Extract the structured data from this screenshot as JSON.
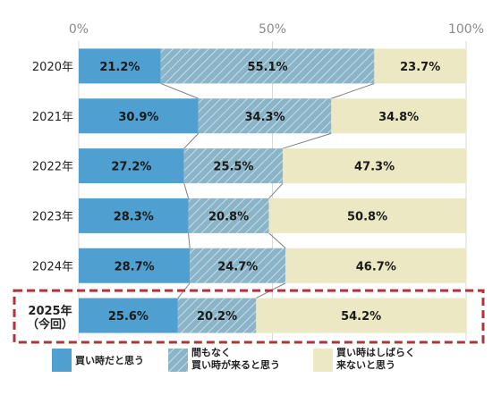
{
  "chart_data": {
    "type": "bar",
    "orientation": "horizontal",
    "stacked": true,
    "percent": true,
    "xlim": [
      0,
      100
    ],
    "x_ticks": [
      "0%",
      "50%",
      "100%"
    ],
    "categories": [
      "2020年",
      "2021年",
      "2022年",
      "2023年",
      "2024年",
      "2025年\n（今回）"
    ],
    "highlight_category": "2025年\n（今回）",
    "series": [
      {
        "name": "買い時だと思う",
        "color": "#4f9fd1",
        "pattern": "solid",
        "values": [
          21.2,
          30.9,
          27.2,
          28.3,
          28.7,
          25.6
        ]
      },
      {
        "name": "間もなく\n買い時が来ると思う",
        "color": "#8ab4c8",
        "pattern": "hatched",
        "values": [
          55.1,
          34.3,
          25.5,
          20.8,
          24.7,
          20.2
        ]
      },
      {
        "name": "買い時はしばらく\n来ないと思う",
        "color": "#ede8c4",
        "pattern": "solid",
        "values": [
          23.7,
          34.8,
          47.3,
          50.8,
          46.7,
          54.2
        ]
      }
    ],
    "value_labels": [
      [
        "21.2%",
        "55.1%",
        "23.7%"
      ],
      [
        "30.9%",
        "34.3%",
        "34.8%"
      ],
      [
        "27.2%",
        "25.5%",
        "47.3%"
      ],
      [
        "28.3%",
        "20.8%",
        "50.8%"
      ],
      [
        "28.7%",
        "24.7%",
        "46.7%"
      ],
      [
        "25.6%",
        "20.2%",
        "54.2%"
      ]
    ],
    "legend_position": "bottom",
    "highlight_color": "#b0333a"
  }
}
